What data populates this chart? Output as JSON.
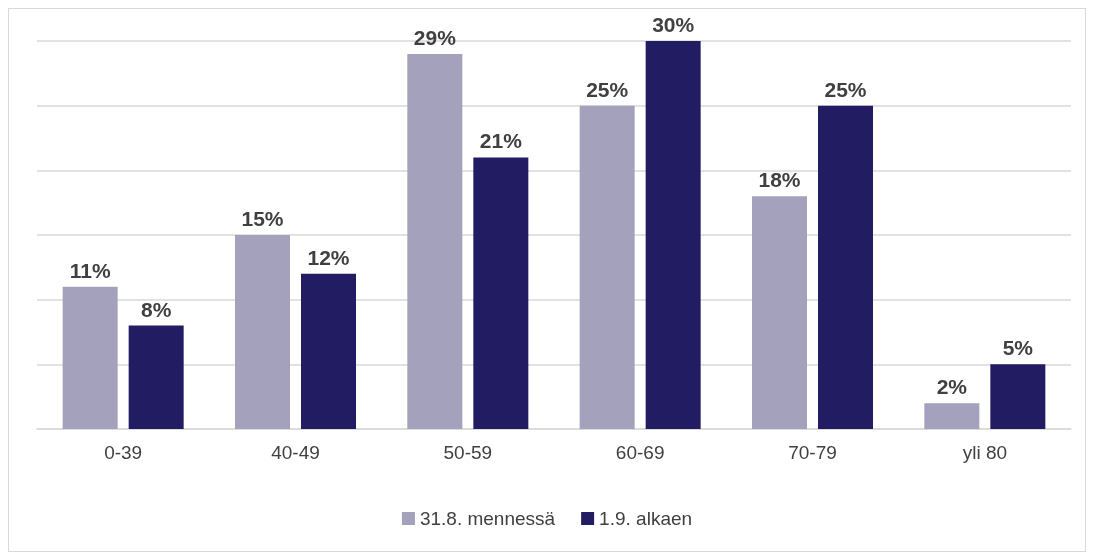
{
  "chart_data": {
    "type": "bar",
    "categories": [
      "0-39",
      "40-49",
      "50-59",
      "60-69",
      "70-79",
      "yli 80"
    ],
    "series": [
      {
        "name": "31.8. mennessä",
        "color": "#a3a1bb",
        "values": [
          11,
          15,
          29,
          25,
          18,
          2
        ],
        "value_labels": [
          "11%",
          "15%",
          "29%",
          "25%",
          "18%",
          "2%"
        ]
      },
      {
        "name": "1.9. alkaen",
        "color": "#221d63",
        "values": [
          8,
          12,
          21,
          30,
          25,
          5
        ],
        "value_labels": [
          "8%",
          "12%",
          "21%",
          "30%",
          "25%",
          "5%"
        ]
      }
    ],
    "tick_labels": "x",
    "grid": "y",
    "legend": "bottom"
  }
}
